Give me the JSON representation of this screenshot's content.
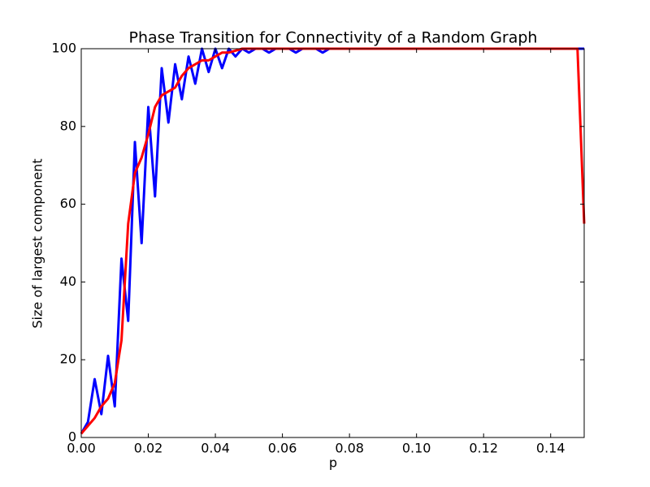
{
  "chart_data": {
    "type": "line",
    "title": "Phase Transition for Connectivity of a Random Graph",
    "x_label": "p",
    "y_label": "Size of largest component",
    "x": [
      0,
      0.002,
      0.004,
      0.006,
      0.008,
      0.01,
      0.012,
      0.014,
      0.016,
      0.018,
      0.02,
      0.022,
      0.024,
      0.026,
      0.028,
      0.03,
      0.032,
      0.034,
      0.036,
      0.038,
      0.04,
      0.042,
      0.044,
      0.046,
      0.048,
      0.05,
      0.052,
      0.054,
      0.056,
      0.058,
      0.06,
      0.062,
      0.064,
      0.066,
      0.068,
      0.07,
      0.072,
      0.074,
      0.08,
      0.1,
      0.12,
      0.14,
      0.148,
      0.15
    ],
    "series": [
      {
        "color": "#0000ff",
        "values": [
          1,
          4,
          15,
          6,
          21,
          8,
          46,
          30,
          76,
          50,
          85,
          62,
          95,
          81,
          96,
          87,
          98,
          91,
          100,
          94,
          100,
          95,
          100,
          98,
          100,
          99,
          100,
          100,
          99,
          100,
          100,
          100,
          99,
          100,
          100,
          100,
          99,
          100,
          100,
          100,
          100,
          100,
          100,
          100
        ]
      },
      {
        "color": "#ff0000",
        "values": [
          1,
          3,
          5,
          8,
          10,
          14,
          25,
          55,
          68,
          72,
          78,
          85,
          88,
          89,
          90,
          93,
          95,
          96,
          97,
          97,
          98,
          99,
          99,
          99.5,
          100,
          100,
          100,
          100,
          100,
          100,
          100,
          100,
          100,
          100,
          100,
          100,
          100,
          100,
          100,
          100,
          100,
          100,
          100,
          55
        ]
      }
    ],
    "xlim": [
      0,
      0.15
    ],
    "ylim": [
      0,
      100
    ],
    "xticks": [
      {
        "value": 0,
        "label": "0.00"
      },
      0.02,
      0.04,
      0.06,
      0.08,
      {
        "value": 0.1,
        "label": "0.10"
      },
      0.12,
      0.14
    ],
    "yticks": [
      0,
      20,
      40,
      60,
      80,
      100
    ]
  }
}
